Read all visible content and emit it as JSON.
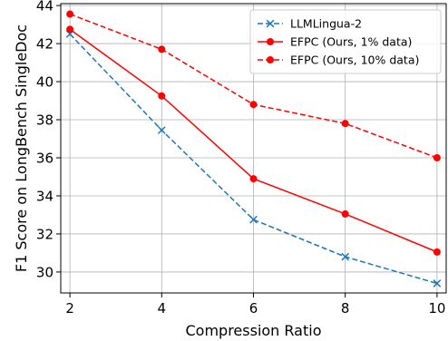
{
  "chart_data": {
    "type": "line",
    "xlabel": "Compression Ratio",
    "ylabel": "F1 Score on LongBench SingleDoc",
    "x": [
      2,
      4,
      6,
      8,
      10
    ],
    "xlim": [
      1.8,
      10.2
    ],
    "ylim": [
      28.9,
      44.1
    ],
    "xticks": [
      2,
      4,
      6,
      8,
      10
    ],
    "yticks": [
      30,
      32,
      34,
      36,
      38,
      40,
      42,
      44
    ],
    "grid": true,
    "legend_position": "top-right",
    "series": [
      {
        "name": "LLMLingua-2",
        "values": [
          42.5,
          37.45,
          32.75,
          30.8,
          29.4
        ],
        "color": "#1f77b4",
        "dash": "dashed",
        "marker": "x"
      },
      {
        "name": "EFPC (Ours, 1% data)",
        "values": [
          42.75,
          39.25,
          34.9,
          33.05,
          31.05
        ],
        "color": "#ff0000",
        "dash": "solid",
        "marker": "circle"
      },
      {
        "name": "EFPC (Ours, 10% data)",
        "values": [
          43.55,
          41.7,
          38.8,
          37.8,
          36.0
        ],
        "color": "#ff0000",
        "dash": "dashed",
        "marker": "circle"
      }
    ]
  }
}
